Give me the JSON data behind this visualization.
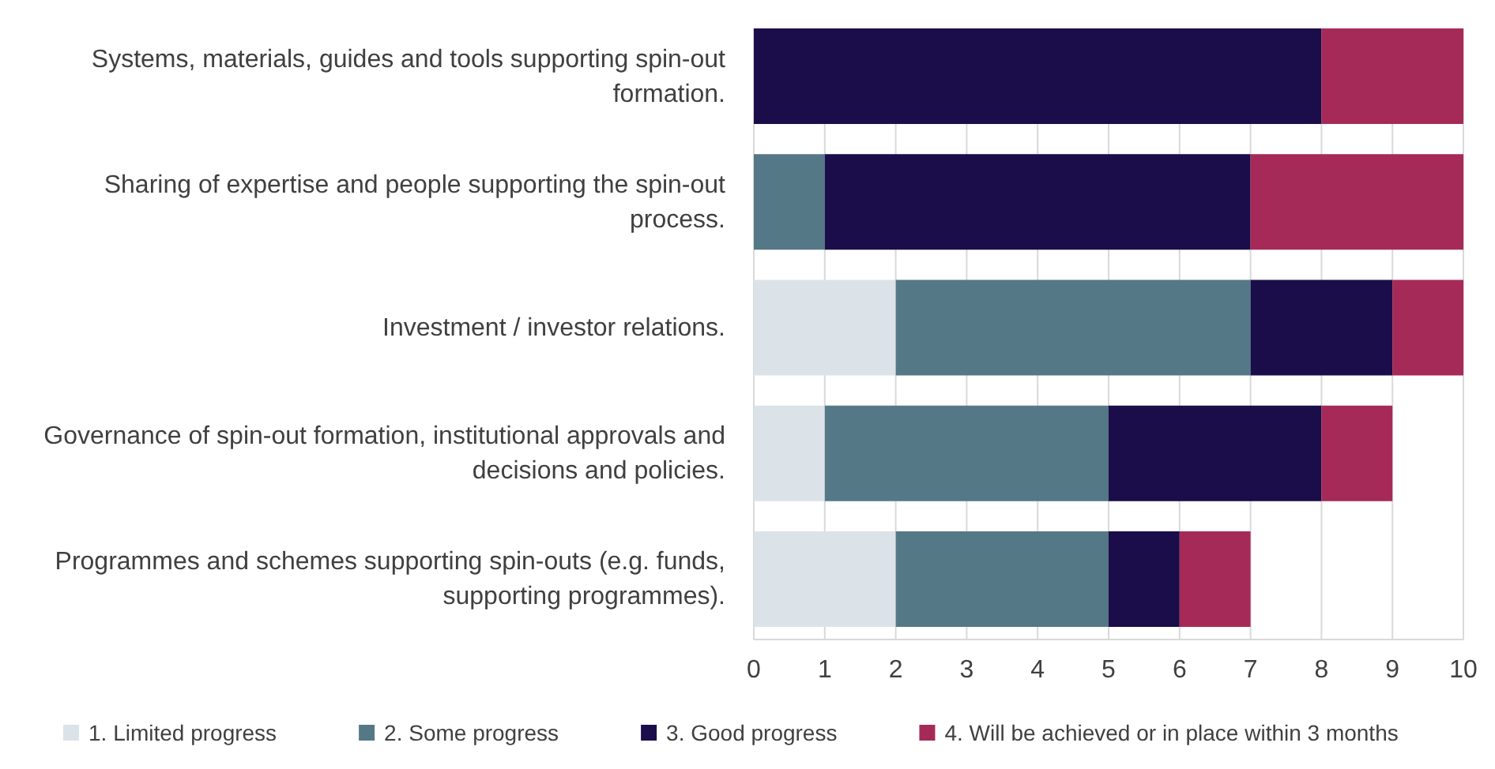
{
  "chart_data": {
    "type": "bar",
    "orientation": "horizontal",
    "stacked": true,
    "categories": [
      "Systems, materials, guides and tools supporting spin-out formation.",
      "Sharing of expertise and people supporting the spin-out process.",
      "Investment / investor relations.",
      "Governance of spin-out formation, institutional approvals and decisions and policies.",
      "Programmes and schemes supporting spin-outs (e.g. funds, supporting programmes)."
    ],
    "series": [
      {
        "name": "1. Limited progress",
        "color": "#dce3e8",
        "values": [
          0,
          0,
          2,
          1,
          2
        ]
      },
      {
        "name": "2. Some progress",
        "color": "#557887",
        "values": [
          0,
          1,
          5,
          4,
          3
        ]
      },
      {
        "name": "3. Good progress",
        "color": "#1a0d4a",
        "values": [
          8,
          6,
          2,
          3,
          1
        ]
      },
      {
        "name": "4. Will be achieved or in place within 3 months",
        "color": "#a52a57",
        "values": [
          2,
          3,
          1,
          1,
          1
        ]
      }
    ],
    "xlim": [
      0,
      10
    ],
    "xticks": [
      0,
      1,
      2,
      3,
      4,
      5,
      6,
      7,
      8,
      9,
      10
    ],
    "grid": "x",
    "legend": "bottom"
  }
}
